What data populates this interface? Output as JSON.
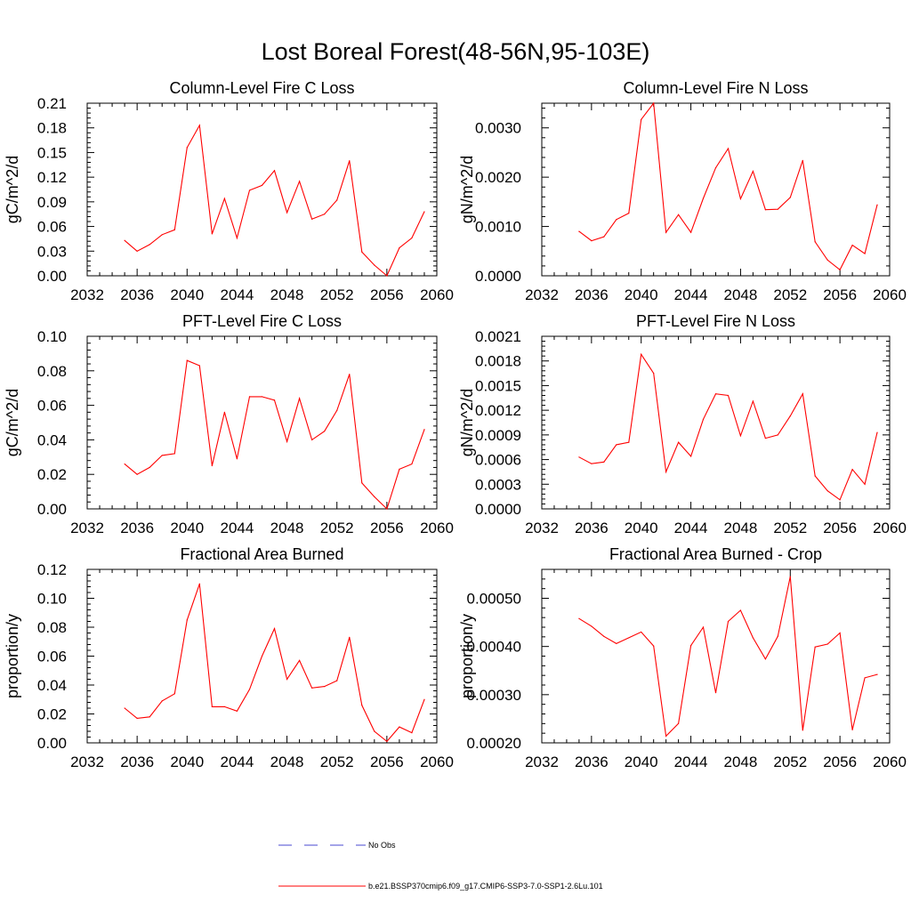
{
  "figure_title": "Lost Boreal Forest(48-56N,95-103E)",
  "colors": {
    "series": "#ff0000",
    "no_obs": "#4a4ad0",
    "axis": "#000000"
  },
  "legend": {
    "placement": "bottom-center",
    "entries": [
      {
        "label": "No Obs",
        "style": "dashed",
        "color": "#4a4ad0"
      },
      {
        "label": "b.e21.BSSP370cmip6.f09_g17.CMIP6-SSP3-7.0-SSP1-2.6Lu.101",
        "style": "solid",
        "color": "#ff0000"
      }
    ]
  },
  "chart_data": [
    {
      "type": "line",
      "title": "Column-Level Fire C Loss",
      "ylabel": "gC/m^2/d",
      "xlim": [
        2032,
        2060
      ],
      "xticks": [
        "2032",
        "2036",
        "2040",
        "2044",
        "2048",
        "2052",
        "2056",
        "2060"
      ],
      "ylim": [
        0,
        0.21
      ],
      "yticks": [
        "0.00",
        "0.03",
        "0.06",
        "0.09",
        "0.12",
        "0.15",
        "0.18",
        "0.21"
      ],
      "x": [
        2035,
        2036,
        2037,
        2038,
        2039,
        2040,
        2041,
        2042,
        2043,
        2044,
        2045,
        2046,
        2047,
        2048,
        2049,
        2050,
        2051,
        2052,
        2053,
        2054,
        2055,
        2056,
        2057,
        2058,
        2059
      ],
      "series": [
        {
          "name": "b.e21.BSSP370cmip6.f09_g17.CMIP6-SSP3-7.0-SSP1-2.6Lu.101",
          "values": [
            0.043,
            0.03,
            0.038,
            0.05,
            0.056,
            0.156,
            0.183,
            0.051,
            0.094,
            0.046,
            0.104,
            0.11,
            0.128,
            0.077,
            0.115,
            0.069,
            0.075,
            0.092,
            0.14,
            0.029,
            0.013,
            0.0,
            0.034,
            0.046,
            0.078
          ]
        }
      ]
    },
    {
      "type": "line",
      "title": "Column-Level Fire N Loss",
      "ylabel": "gN/m^2/d",
      "xlim": [
        2032,
        2060
      ],
      "xticks": [
        "2032",
        "2036",
        "2040",
        "2044",
        "2048",
        "2052",
        "2056",
        "2060"
      ],
      "ylim": [
        0,
        0.0035
      ],
      "yticks": [
        "0.0000",
        "0.0010",
        "0.0020",
        "0.0030"
      ],
      "ytick_values": [
        0,
        0.001,
        0.002,
        0.003
      ],
      "x": [
        2035,
        2036,
        2037,
        2038,
        2039,
        2040,
        2041,
        2042,
        2043,
        2044,
        2045,
        2046,
        2047,
        2048,
        2049,
        2050,
        2051,
        2052,
        2053,
        2054,
        2055,
        2056,
        2057,
        2058,
        2059
      ],
      "series": [
        {
          "name": "b.e21.BSSP370cmip6.f09_g17.CMIP6-SSP3-7.0-SSP1-2.6Lu.101",
          "values": [
            0.0009,
            0.00071,
            0.00079,
            0.00114,
            0.00127,
            0.00317,
            0.0035,
            0.00088,
            0.00124,
            0.00088,
            0.00157,
            0.00219,
            0.00258,
            0.00156,
            0.00212,
            0.00134,
            0.00135,
            0.00159,
            0.00234,
            0.00069,
            0.00032,
            0.00012,
            0.00062,
            0.00045,
            0.00144
          ]
        }
      ]
    },
    {
      "type": "line",
      "title": "PFT-Level Fire C Loss",
      "ylabel": "gC/m^2/d",
      "xlim": [
        2032,
        2060
      ],
      "xticks": [
        "2032",
        "2036",
        "2040",
        "2044",
        "2048",
        "2052",
        "2056",
        "2060"
      ],
      "ylim": [
        0,
        0.1
      ],
      "yticks": [
        "0.00",
        "0.02",
        "0.04",
        "0.06",
        "0.08",
        "0.10"
      ],
      "x": [
        2035,
        2036,
        2037,
        2038,
        2039,
        2040,
        2041,
        2042,
        2043,
        2044,
        2045,
        2046,
        2047,
        2048,
        2049,
        2050,
        2051,
        2052,
        2053,
        2054,
        2055,
        2056,
        2057,
        2058,
        2059
      ],
      "series": [
        {
          "name": "b.e21.BSSP370cmip6.f09_g17.CMIP6-SSP3-7.0-SSP1-2.6Lu.101",
          "values": [
            0.026,
            0.02,
            0.024,
            0.031,
            0.032,
            0.086,
            0.083,
            0.025,
            0.056,
            0.029,
            0.065,
            0.065,
            0.063,
            0.039,
            0.064,
            0.04,
            0.045,
            0.057,
            0.078,
            0.015,
            0.007,
            0.0,
            0.023,
            0.026,
            0.046
          ]
        }
      ]
    },
    {
      "type": "line",
      "title": "PFT-Level Fire N Loss",
      "ylabel": "gN/m^2/d",
      "xlim": [
        2032,
        2060
      ],
      "xticks": [
        "2032",
        "2036",
        "2040",
        "2044",
        "2048",
        "2052",
        "2056",
        "2060"
      ],
      "ylim": [
        0,
        0.0021
      ],
      "yticks": [
        "0.0000",
        "0.0003",
        "0.0006",
        "0.0009",
        "0.0012",
        "0.0015",
        "0.0018",
        "0.0021"
      ],
      "x": [
        2035,
        2036,
        2037,
        2038,
        2039,
        2040,
        2041,
        2042,
        2043,
        2044,
        2045,
        2046,
        2047,
        2048,
        2049,
        2050,
        2051,
        2052,
        2053,
        2054,
        2055,
        2056,
        2057,
        2058,
        2059
      ],
      "series": [
        {
          "name": "b.e21.BSSP370cmip6.f09_g17.CMIP6-SSP3-7.0-SSP1-2.6Lu.101",
          "values": [
            0.00063,
            0.00055,
            0.00057,
            0.00078,
            0.00081,
            0.00188,
            0.00165,
            0.00045,
            0.00081,
            0.00064,
            0.00109,
            0.0014,
            0.00138,
            0.00089,
            0.00131,
            0.00086,
            0.0009,
            0.00113,
            0.0014,
            0.0004,
            0.00022,
            0.00011,
            0.00048,
            0.0003,
            0.00093
          ]
        }
      ]
    },
    {
      "type": "line",
      "title": "Fractional Area Burned",
      "ylabel": "proportion/y",
      "xlim": [
        2032,
        2060
      ],
      "xticks": [
        "2032",
        "2036",
        "2040",
        "2044",
        "2048",
        "2052",
        "2056",
        "2060"
      ],
      "ylim": [
        0,
        0.12
      ],
      "yticks": [
        "0.00",
        "0.02",
        "0.04",
        "0.06",
        "0.08",
        "0.10",
        "0.12"
      ],
      "x": [
        2035,
        2036,
        2037,
        2038,
        2039,
        2040,
        2041,
        2042,
        2043,
        2044,
        2045,
        2046,
        2047,
        2048,
        2049,
        2050,
        2051,
        2052,
        2053,
        2054,
        2055,
        2056,
        2057,
        2058,
        2059
      ],
      "series": [
        {
          "name": "b.e21.BSSP370cmip6.f09_g17.CMIP6-SSP3-7.0-SSP1-2.6Lu.101",
          "values": [
            0.024,
            0.017,
            0.018,
            0.029,
            0.034,
            0.085,
            0.11,
            0.025,
            0.025,
            0.022,
            0.037,
            0.06,
            0.079,
            0.044,
            0.057,
            0.038,
            0.039,
            0.043,
            0.073,
            0.026,
            0.008,
            0.001,
            0.011,
            0.007,
            0.03
          ]
        }
      ]
    },
    {
      "type": "line",
      "title": "Fractional Area Burned - Crop",
      "ylabel": "proportion/y",
      "xlim": [
        2032,
        2060
      ],
      "xticks": [
        "2032",
        "2036",
        "2040",
        "2044",
        "2048",
        "2052",
        "2056",
        "2060"
      ],
      "ylim": [
        0.0002,
        0.00056
      ],
      "yticks": [
        "0.00020",
        "0.00030",
        "0.00040",
        "0.00050"
      ],
      "ytick_values": [
        0.0002,
        0.0003,
        0.0004,
        0.0005
      ],
      "x": [
        2035,
        2036,
        2037,
        2038,
        2039,
        2040,
        2041,
        2042,
        2043,
        2044,
        2045,
        2046,
        2047,
        2048,
        2049,
        2050,
        2051,
        2052,
        2053,
        2054,
        2055,
        2056,
        2057,
        2058,
        2059
      ],
      "series": [
        {
          "name": "b.e21.BSSP370cmip6.f09_g17.CMIP6-SSP3-7.0-SSP1-2.6Lu.101",
          "values": [
            0.000458,
            0.000442,
            0.000421,
            0.000406,
            0.000418,
            0.00043,
            0.000401,
            0.000214,
            0.00024,
            0.000402,
            0.00044,
            0.000304,
            0.000452,
            0.000475,
            0.000418,
            0.000374,
            0.000421,
            0.000545,
            0.000226,
            0.000399,
            0.000405,
            0.000428,
            0.000227,
            0.000335,
            0.000342
          ]
        }
      ]
    }
  ]
}
